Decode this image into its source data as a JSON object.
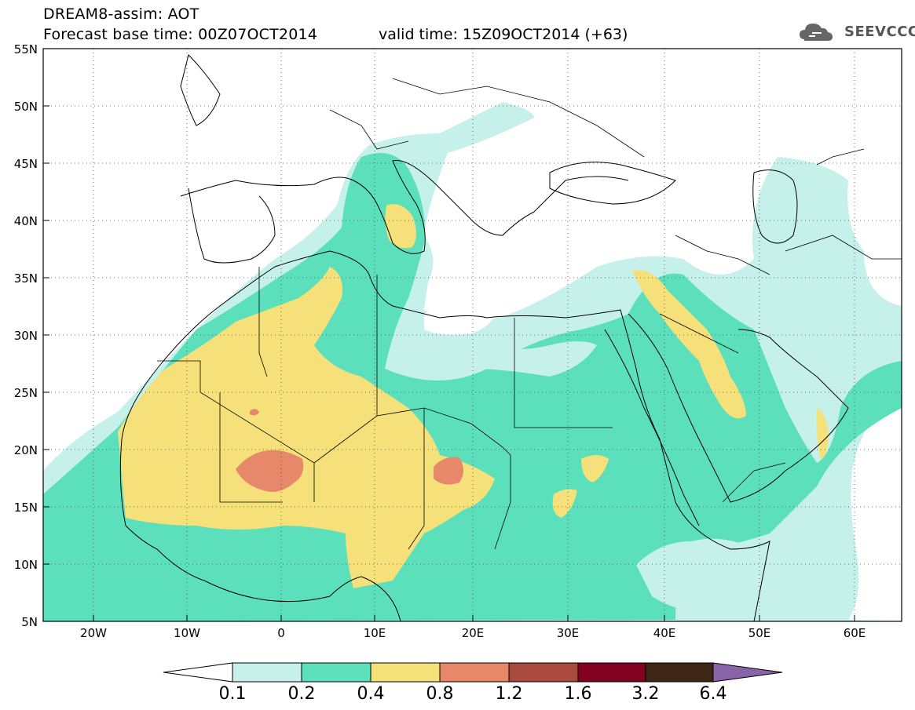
{
  "title": {
    "line1": "DREAM8-assim: AOT",
    "line2": "Forecast base time: 00Z07OCT2014",
    "valid": "valid time: 15Z09OCT2014 (+63)"
  },
  "logo": {
    "text": "SEEVCCC",
    "icon": "cloud-icon"
  },
  "map": {
    "lat_labels": [
      "55N",
      "50N",
      "45N",
      "40N",
      "35N",
      "30N",
      "25N",
      "20N",
      "15N",
      "10N",
      "5N"
    ],
    "lon_labels": [
      "20W",
      "10W",
      "0",
      "10E",
      "20E",
      "30E",
      "40E",
      "50E",
      "60E"
    ],
    "lat_range": [
      5,
      55
    ],
    "lon_range": [
      -25,
      65
    ],
    "grid": "dotted"
  },
  "colorbar": {
    "ticks": [
      "0.1",
      "0.2",
      "0.4",
      "0.8",
      "1.2",
      "1.6",
      "3.2",
      "6.4"
    ],
    "colors": [
      "#ffffff",
      "#c6f0ea",
      "#5ce0bc",
      "#f5e07a",
      "#e8886a",
      "#a94a3c",
      "#820020",
      "#3d2615",
      "#8a64a8"
    ]
  },
  "colors": {
    "c1": "#c6f0ea",
    "c2": "#5ce0bc",
    "c3": "#f5e07a",
    "c4": "#e8886a"
  }
}
